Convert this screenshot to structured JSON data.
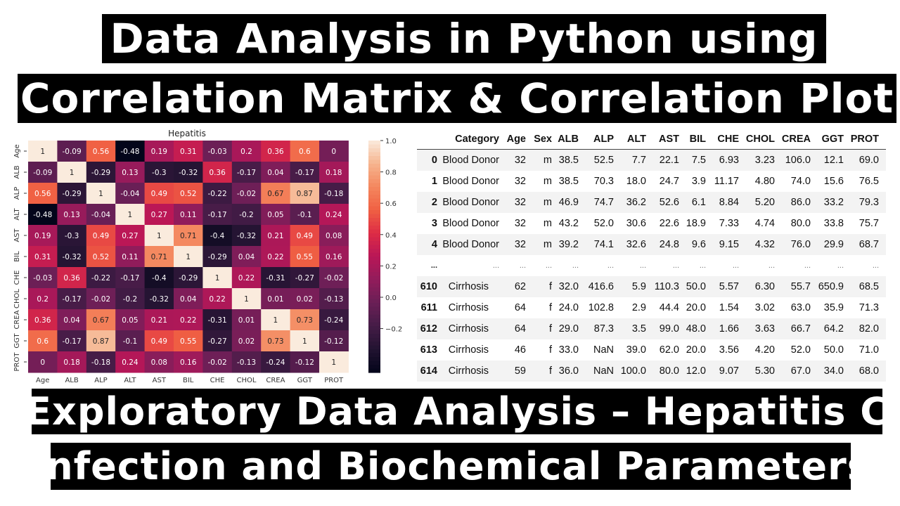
{
  "banners": {
    "title_line1": "Data Analysis in Python using",
    "title_line2": "Correlation Matrix & Correlation Plot",
    "subtitle_line1": "Exploratory Data Analysis – Hepatitis C",
    "subtitle_line2": "Infection and Biochemical Parameters"
  },
  "chart_data": {
    "type": "heatmap",
    "title": "Hepatitis",
    "labels": [
      "Age",
      "ALB",
      "ALP",
      "ALT",
      "AST",
      "BIL",
      "CHE",
      "CHOL",
      "CREA",
      "GGT",
      "PROT"
    ],
    "values": [
      [
        1,
        -0.09,
        0.56,
        -0.48,
        0.19,
        0.31,
        -0.03,
        0.2,
        0.36,
        0.6,
        0
      ],
      [
        -0.09,
        1,
        -0.29,
        0.13,
        -0.3,
        -0.32,
        0.36,
        -0.17,
        0.04,
        -0.17,
        0.18
      ],
      [
        0.56,
        -0.29,
        1,
        -0.04,
        0.49,
        0.52,
        -0.22,
        -0.02,
        0.67,
        0.87,
        -0.18
      ],
      [
        -0.48,
        0.13,
        -0.04,
        1,
        0.27,
        0.11,
        -0.17,
        -0.2,
        0.05,
        -0.1,
        0.24
      ],
      [
        0.19,
        -0.3,
        0.49,
        0.27,
        1,
        0.71,
        -0.4,
        -0.32,
        0.21,
        0.49,
        0.08
      ],
      [
        0.31,
        -0.32,
        0.52,
        0.11,
        0.71,
        1,
        -0.29,
        0.04,
        0.22,
        0.55,
        0.16
      ],
      [
        -0.03,
        0.36,
        -0.22,
        -0.17,
        -0.4,
        -0.29,
        1,
        0.22,
        -0.31,
        -0.27,
        -0.02
      ],
      [
        0.2,
        -0.17,
        -0.02,
        -0.2,
        -0.32,
        0.04,
        0.22,
        1,
        0.01,
        0.02,
        -0.13
      ],
      [
        0.36,
        0.04,
        0.67,
        0.05,
        0.21,
        0.22,
        -0.31,
        0.01,
        1,
        0.73,
        -0.24
      ],
      [
        0.6,
        -0.17,
        0.87,
        -0.1,
        0.49,
        0.55,
        -0.27,
        0.02,
        0.73,
        1,
        -0.12
      ],
      [
        0,
        0.18,
        -0.18,
        0.24,
        0.08,
        0.16,
        -0.02,
        -0.13,
        -0.24,
        -0.12,
        1
      ]
    ],
    "colormap": "rocket",
    "vmin": -0.48,
    "vmax": 1.0,
    "colorbar_ticks": [
      "1.0",
      "0.8",
      "0.6",
      "0.4",
      "0.2",
      "0.0",
      "−0.2"
    ],
    "colorbar_tick_values": [
      1.0,
      0.8,
      0.6,
      0.4,
      0.2,
      0.0,
      -0.2
    ],
    "annotated": true
  },
  "table": {
    "columns": [
      "",
      "Category",
      "Age",
      "Sex",
      "ALB",
      "ALP",
      "ALT",
      "AST",
      "BIL",
      "CHE",
      "CHOL",
      "CREA",
      "GGT",
      "PROT"
    ],
    "rows": [
      [
        "0",
        "Blood Donor",
        "32",
        "m",
        "38.5",
        "52.5",
        "7.7",
        "22.1",
        "7.5",
        "6.93",
        "3.23",
        "106.0",
        "12.1",
        "69.0"
      ],
      [
        "1",
        "Blood Donor",
        "32",
        "m",
        "38.5",
        "70.3",
        "18.0",
        "24.7",
        "3.9",
        "11.17",
        "4.80",
        "74.0",
        "15.6",
        "76.5"
      ],
      [
        "2",
        "Blood Donor",
        "32",
        "m",
        "46.9",
        "74.7",
        "36.2",
        "52.6",
        "6.1",
        "8.84",
        "5.20",
        "86.0",
        "33.2",
        "79.3"
      ],
      [
        "3",
        "Blood Donor",
        "32",
        "m",
        "43.2",
        "52.0",
        "30.6",
        "22.6",
        "18.9",
        "7.33",
        "4.74",
        "80.0",
        "33.8",
        "75.7"
      ],
      [
        "4",
        "Blood Donor",
        "32",
        "m",
        "39.2",
        "74.1",
        "32.6",
        "24.8",
        "9.6",
        "9.15",
        "4.32",
        "76.0",
        "29.9",
        "68.7"
      ],
      [
        "...",
        "...",
        "...",
        "...",
        "...",
        "...",
        "...",
        "...",
        "...",
        "...",
        "...",
        "...",
        "...",
        "..."
      ],
      [
        "610",
        "Cirrhosis",
        "62",
        "f",
        "32.0",
        "416.6",
        "5.9",
        "110.3",
        "50.0",
        "5.57",
        "6.30",
        "55.7",
        "650.9",
        "68.5"
      ],
      [
        "611",
        "Cirrhosis",
        "64",
        "f",
        "24.0",
        "102.8",
        "2.9",
        "44.4",
        "20.0",
        "1.54",
        "3.02",
        "63.0",
        "35.9",
        "71.3"
      ],
      [
        "612",
        "Cirrhosis",
        "64",
        "f",
        "29.0",
        "87.3",
        "3.5",
        "99.0",
        "48.0",
        "1.66",
        "3.63",
        "66.7",
        "64.2",
        "82.0"
      ],
      [
        "613",
        "Cirrhosis",
        "46",
        "f",
        "33.0",
        "NaN",
        "39.0",
        "62.0",
        "20.0",
        "3.56",
        "4.20",
        "52.0",
        "50.0",
        "71.0"
      ],
      [
        "614",
        "Cirrhosis",
        "59",
        "f",
        "36.0",
        "NaN",
        "100.0",
        "80.0",
        "12.0",
        "9.07",
        "5.30",
        "67.0",
        "34.0",
        "68.0"
      ]
    ]
  }
}
